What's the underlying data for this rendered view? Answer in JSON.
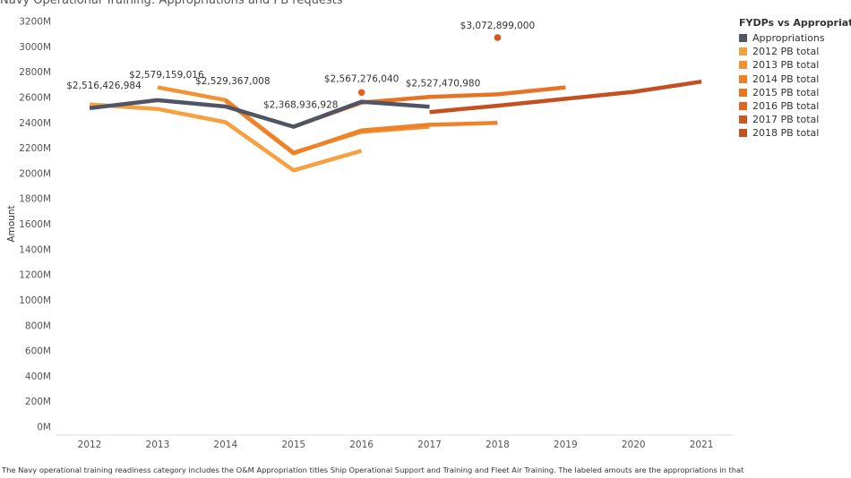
{
  "title": "Navy Operational Training:  Appropriations and PB requests",
  "footnote": "The Navy operational training readiness category includes the O&M Appropriation titles Ship Operational Support and Training and Fleet Air Training.  The labeled amouts are the appropriations in that",
  "legend": {
    "title": "FYDPs vs Appropriations"
  },
  "chart_data": {
    "type": "line",
    "title": "Navy Operational Training:  Appropriations and PB requests",
    "xlabel": "",
    "ylabel": "Amount",
    "x": [
      2012,
      2013,
      2014,
      2015,
      2016,
      2017,
      2018,
      2019,
      2020,
      2021
    ],
    "x_tick_labels": [
      "2012",
      "2013",
      "2014",
      "2015",
      "2016",
      "2017",
      "2018",
      "2019",
      "2020",
      "2021"
    ],
    "ylim": [
      0,
      3200
    ],
    "y_ticks": [
      0,
      200,
      400,
      600,
      800,
      1000,
      1200,
      1400,
      1600,
      1800,
      2000,
      2200,
      2400,
      2600,
      2800,
      3000,
      3200
    ],
    "y_tick_labels": [
      "0M",
      "200M",
      "400M",
      "600M",
      "800M",
      "1000M",
      "1200M",
      "1400M",
      "1600M",
      "1800M",
      "2000M",
      "2200M",
      "2400M",
      "2600M",
      "2800M",
      "3000M",
      "3200M"
    ],
    "grid": false,
    "legend_position": "top-right",
    "series": [
      {
        "name": "Appropriations",
        "color": "#4f5563",
        "x": [
          2012,
          2013,
          2014,
          2015,
          2016,
          2017
        ],
        "values": [
          2516,
          2579,
          2529,
          2369,
          2567,
          2527
        ]
      },
      {
        "name": "2012 PB total",
        "color": "#f7a040",
        "x": [
          2012,
          2013,
          2014,
          2015,
          2016
        ],
        "values": [
          2545,
          2510,
          2405,
          2025,
          2180
        ]
      },
      {
        "name": "2013 PB total",
        "color": "#f39232",
        "x": [
          2013,
          2014,
          2015,
          2016,
          2017
        ],
        "values": [
          2680,
          2580,
          2165,
          2330,
          2370
        ]
      },
      {
        "name": "2014 PB total",
        "color": "#ee8229",
        "x": [
          2014,
          2015,
          2016,
          2017,
          2018
        ],
        "values": [
          2575,
          2160,
          2340,
          2385,
          2400
        ]
      },
      {
        "name": "2015 PB total",
        "color": "#e77424",
        "x": [
          2015,
          2016,
          2017,
          2018,
          2019
        ],
        "values": [
          2370,
          2560,
          2605,
          2625,
          2680
        ]
      },
      {
        "name": "2016 PB total",
        "color": "#df6620",
        "x": [
          2016
        ],
        "values": [
          2640
        ]
      },
      {
        "name": "2017 PB total",
        "color": "#cf581e",
        "x": [
          2018
        ],
        "values": [
          3072.899
        ]
      },
      {
        "name": "2018 PB total",
        "color": "#c3501e",
        "x": [
          2017,
          2018,
          2019,
          2020,
          2021
        ],
        "values": [
          2485,
          2535,
          2590,
          2645,
          2725
        ]
      }
    ],
    "annotations": [
      {
        "text": "$2,516,426,984",
        "x": 2012,
        "y": 2516
      },
      {
        "text": "$2,579,159,016",
        "x": 2013,
        "y": 2579
      },
      {
        "text": "$2,529,367,008",
        "x": 2014,
        "y": 2529
      },
      {
        "text": "$2,368,936,928",
        "x": 2015,
        "y": 2369
      },
      {
        "text": "$2,567,276,040",
        "x": 2016,
        "y": 2567
      },
      {
        "text": "$2,527,470,980",
        "x": 2017,
        "y": 2527
      },
      {
        "text": "$3,072,899,000",
        "x": 2018,
        "y": 3073
      }
    ]
  }
}
